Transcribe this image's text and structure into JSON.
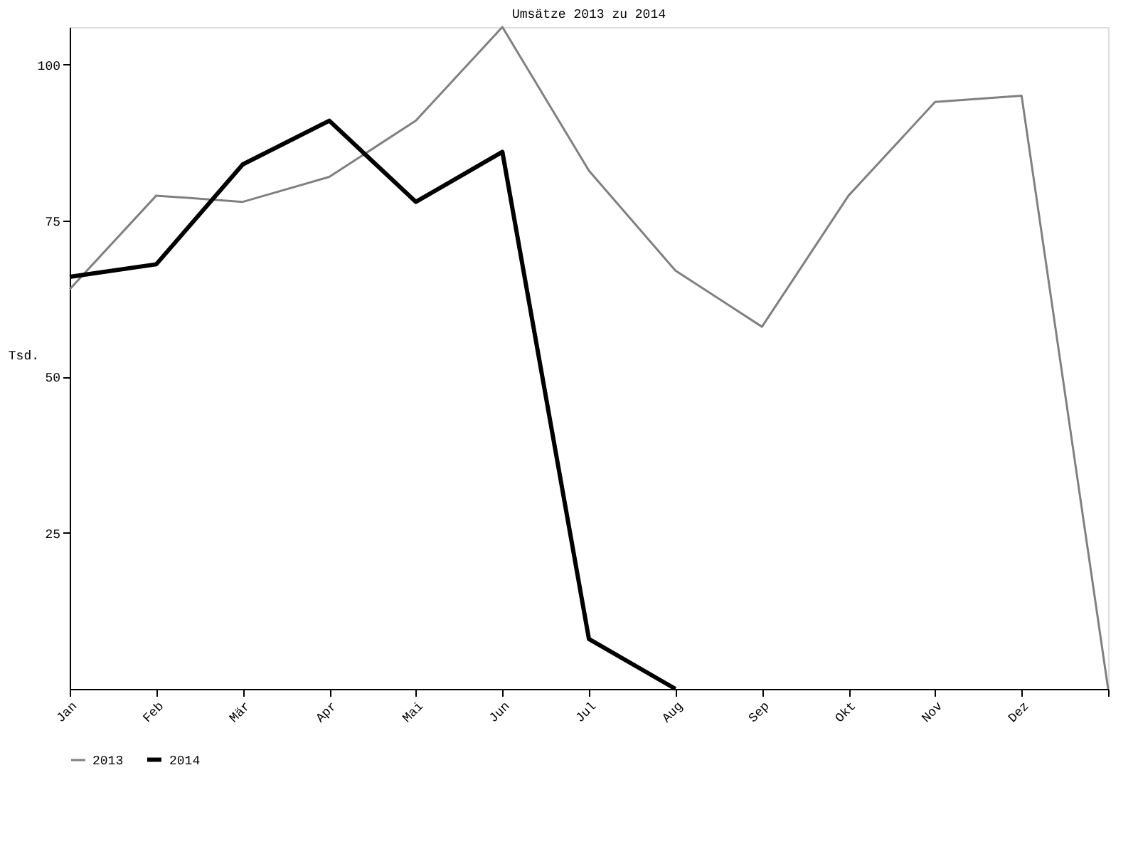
{
  "chart_data": {
    "type": "line",
    "title": "Umsätze 2013 zu 2014",
    "ylabel": "Tsd.",
    "categories": [
      "Jan",
      "Feb",
      "Mär",
      "Apr",
      "Mai",
      "Jun",
      "Jul",
      "Aug",
      "Sep",
      "Okt",
      "Nov",
      "Dez",
      null
    ],
    "series": [
      {
        "name": "2013",
        "color": "#808080",
        "values": [
          64,
          79,
          78,
          82,
          91,
          106,
          83,
          67,
          58,
          79,
          94,
          95,
          0
        ]
      },
      {
        "name": "2014",
        "color": "#000000",
        "values": [
          66,
          68,
          84,
          91,
          78,
          86,
          8,
          0,
          null,
          null,
          null,
          null,
          null
        ]
      }
    ],
    "ylim": [
      0,
      106
    ],
    "yticks": [
      25,
      50,
      75,
      100
    ],
    "grid": false,
    "legend": "bottom",
    "marker": "none",
    "line_style": "solid"
  }
}
